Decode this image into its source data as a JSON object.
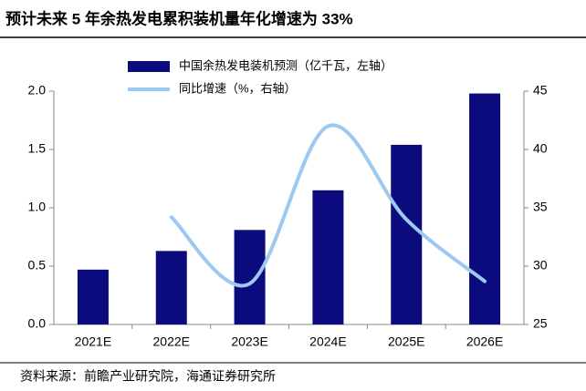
{
  "chart_data": {
    "type": "bar",
    "title": "预计未来 5 年余热发电累积装机量年化增速为 33%",
    "source": "资料来源：前瞻产业研究院，海通证券研究所",
    "categories": [
      "2021E",
      "2022E",
      "2023E",
      "2024E",
      "2025E",
      "2026E"
    ],
    "series": [
      {
        "name": "中国余热发电装机预测（亿千瓦，左轴）",
        "color": "#0b0b7d",
        "type": "bar",
        "values": [
          0.47,
          0.63,
          0.81,
          1.15,
          1.54,
          1.98
        ]
      },
      {
        "name": "同比增速（%，右轴）",
        "color": "#9cc8f2",
        "type": "line",
        "axis": "y2",
        "smooth": true,
        "values": [
          null,
          34.2,
          28.5,
          42,
          34,
          28.7
        ]
      }
    ],
    "ylim": [
      0,
      2
    ],
    "yticks": [
      {
        "value": 0,
        "label": "0.0"
      },
      0.5,
      {
        "value": 1,
        "label": "1.0"
      },
      1.5,
      {
        "value": 2,
        "label": "2.0"
      }
    ],
    "y2lim": [
      25,
      45
    ],
    "y2ticks": [
      25,
      30,
      35,
      40,
      45
    ],
    "grid": false,
    "legend": "top"
  }
}
